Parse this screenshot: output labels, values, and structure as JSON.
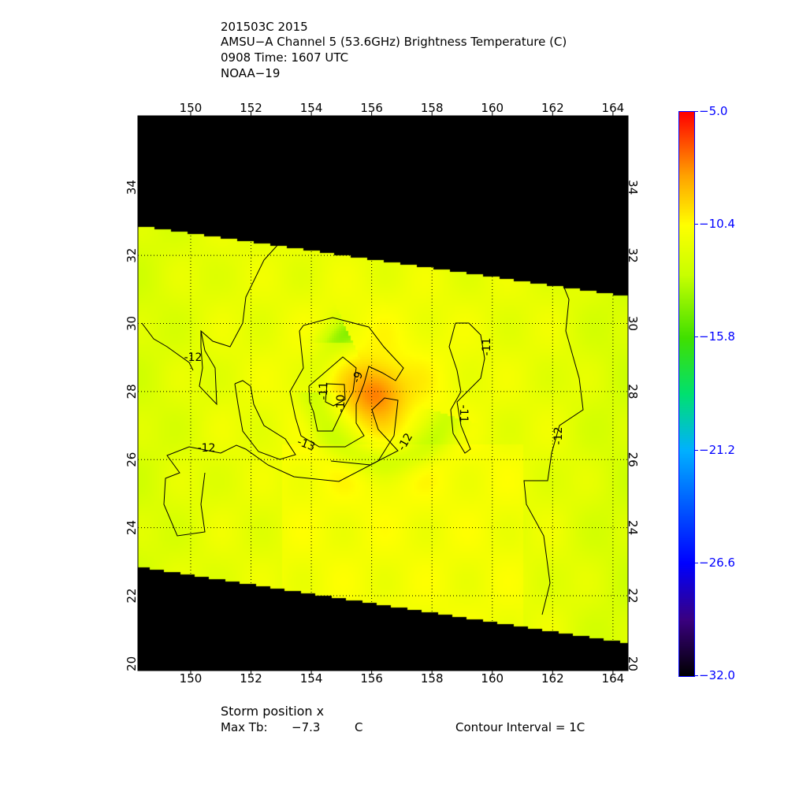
{
  "header": {
    "line1": "201503C 2015",
    "line2": "AMSU−A Channel 5 (53.6GHz) Brightness Temperature (C)",
    "line3": "0908 Time: 1607 UTC",
    "line4": "NOAA−19"
  },
  "footer": {
    "storm_position": "Storm position x",
    "max_tb_label": "Max Tb:",
    "max_tb_value": "−7.3",
    "max_tb_unit": "C",
    "contour_interval": "Contour Interval = 1C"
  },
  "chart_data": {
    "type": "heatmap",
    "title": "AMSU−A Channel 5 (53.6GHz) Brightness Temperature (C)",
    "xlim": [
      148.25,
      164.5
    ],
    "ylim": [
      19.8,
      36.1
    ],
    "x_ticks": [
      "150",
      "152",
      "154",
      "156",
      "158",
      "160",
      "162",
      "164"
    ],
    "y_ticks": [
      "20",
      "22",
      "24",
      "26",
      "28",
      "30",
      "32",
      "34"
    ],
    "grid": true,
    "colorbar": {
      "range": [
        -32.0,
        -5.0
      ],
      "tick_labels": [
        "-5.0",
        "-10.4",
        "-15.8",
        "-21.2",
        "-26.6",
        "-32.0"
      ],
      "label_color": "#0000ff",
      "colors": [
        "#000000",
        "#3a0080",
        "#0000ff",
        "#00b0ff",
        "#00e070",
        "#40e000",
        "#c8ff00",
        "#ffff00",
        "#ffa000",
        "#ff0000"
      ]
    },
    "field": {
      "background_tb": -11.4,
      "warm_core": {
        "lon": 156.1,
        "lat": 28.0,
        "max_tb": -7.3
      },
      "cold_band_tb": -13.2
    },
    "contour_labels": [
      "-12",
      "-12",
      "-13",
      "-12",
      "-11",
      "-10",
      "-9",
      "-11",
      "-11",
      "-12"
    ],
    "no_data_color": "#000000"
  }
}
